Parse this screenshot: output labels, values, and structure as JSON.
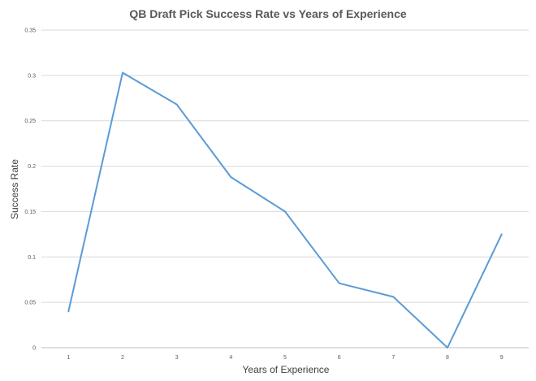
{
  "chart_data": {
    "type": "line",
    "title": "QB Draft Pick Success Rate vs Years of Experience",
    "xlabel": "Years of Experience",
    "ylabel": "Success Rate",
    "categories": [
      "1",
      "2",
      "3",
      "4",
      "5",
      "6",
      "7",
      "8",
      "9"
    ],
    "yticks": [
      "0",
      "0.05",
      "0.1",
      "0.15",
      "0.2",
      "0.25",
      "0.3",
      "0.35"
    ],
    "ylim": [
      0,
      0.35
    ],
    "grid": true,
    "legend": "none",
    "series": [
      {
        "values": [
          0.04,
          0.303,
          0.268,
          0.188,
          0.15,
          0.071,
          0.056,
          0.0,
          0.125
        ],
        "color": "#5b9bd5"
      }
    ]
  }
}
